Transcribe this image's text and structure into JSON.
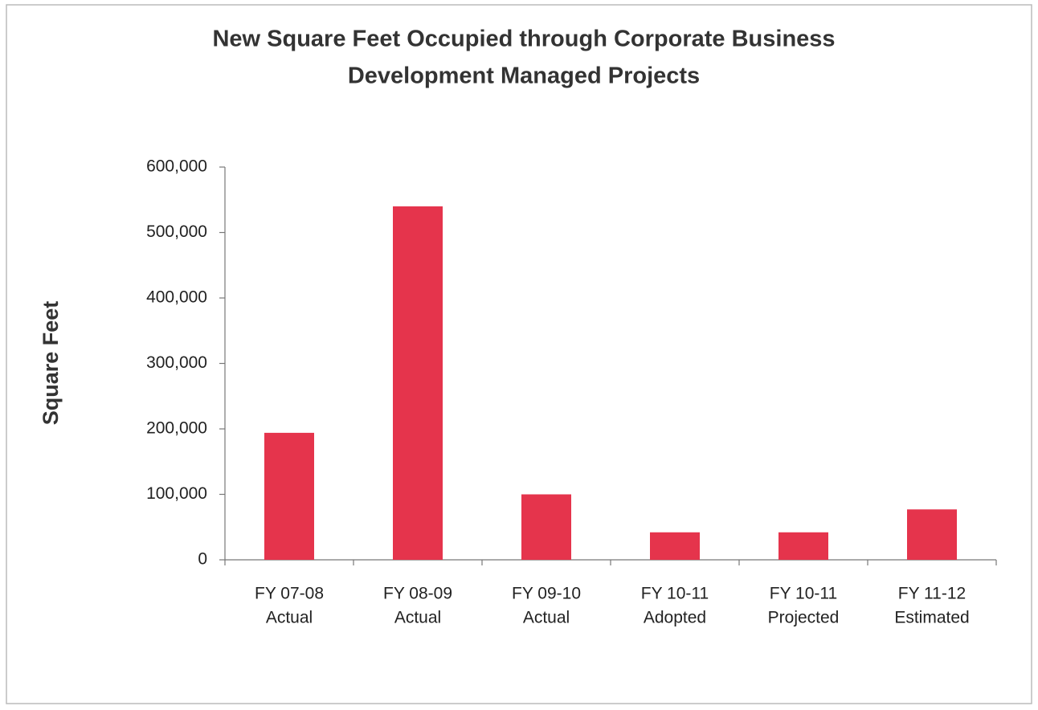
{
  "chart_data": {
    "type": "bar",
    "title": [
      "New Square Feet Occupied through Corporate Business",
      "Development Managed Projects"
    ],
    "y_label": "Square Feet",
    "categories": [
      [
        "FY 07-08",
        "Actual"
      ],
      [
        "FY 08-09",
        "Actual"
      ],
      [
        "FY 09-10",
        "Actual"
      ],
      [
        "FY 10-11",
        "Adopted"
      ],
      [
        "FY 10-11",
        "Projected"
      ],
      [
        "FY 11-12",
        "Estimated"
      ]
    ],
    "values": [
      194000,
      540000,
      100000,
      42000,
      42000,
      77000
    ],
    "color": "#e5344c",
    "ylim": [
      0,
      600000
    ],
    "yticks": [
      0,
      {
        "value": 100000,
        "label": "100,000"
      },
      {
        "value": 200000,
        "label": "200,000"
      },
      {
        "value": 300000,
        "label": "300,000"
      },
      {
        "value": 400000,
        "label": "400,000"
      },
      {
        "value": 500000,
        "label": "500,000"
      },
      {
        "value": 600000,
        "label": "600,000"
      }
    ],
    "grid": false
  }
}
